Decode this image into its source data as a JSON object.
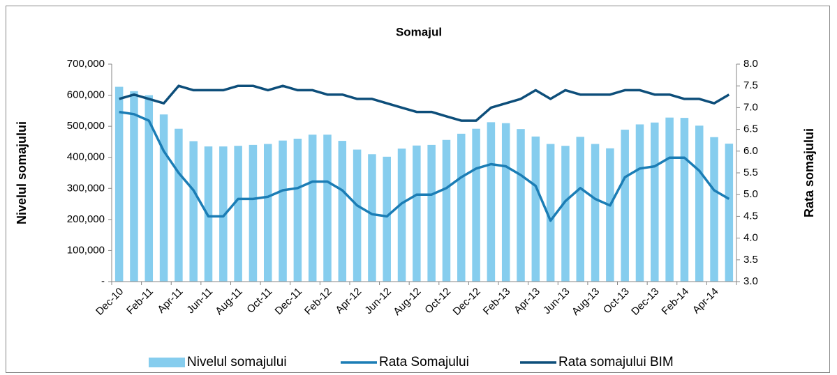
{
  "chart_data": {
    "type": "bar",
    "title": "Somajul",
    "y_label": "Nivelul somajului",
    "y2_label": "Rata somajului",
    "categories": [
      "Dec-10",
      null,
      "Feb-11",
      null,
      "Apr-11",
      null,
      "Jun-11",
      null,
      "Aug-11",
      null,
      "Oct-11",
      null,
      "Dec-11",
      null,
      "Feb-12",
      null,
      "Apr-12",
      null,
      "Jun-12",
      null,
      "Aug-12",
      null,
      "Oct-12",
      null,
      "Dec-12",
      null,
      "Feb-13",
      null,
      "Apr-13",
      null,
      "Jun-13",
      null,
      "Aug-13",
      null,
      "Oct-13",
      null,
      "Dec-13",
      null,
      "Feb-14",
      null,
      "Apr-14",
      null
    ],
    "series": [
      {
        "name": "Nivelul somajului",
        "type": "bar",
        "color": "#86cdee",
        "values": [
          627000,
          613000,
          600000,
          538000,
          492000,
          452000,
          435000,
          435000,
          437000,
          440000,
          443000,
          454000,
          460000,
          473000,
          473000,
          453000,
          425000,
          410000,
          402000,
          428000,
          438000,
          440000,
          456000,
          476000,
          492000,
          513000,
          510000,
          491000,
          467000,
          443000,
          437000,
          466000,
          443000,
          429000,
          489000,
          506000,
          512000,
          528000,
          527000,
          502000,
          465000,
          444000
        ]
      },
      {
        "name": "Rata Somajului",
        "type": "line",
        "axis": "y2",
        "color": "#1b7db5",
        "values": [
          6.9,
          6.85,
          6.7,
          6.0,
          5.5,
          5.1,
          4.5,
          4.5,
          4.9,
          4.9,
          4.95,
          5.1,
          5.15,
          5.3,
          5.3,
          5.1,
          4.75,
          4.55,
          4.5,
          4.8,
          5.0,
          5.0,
          5.15,
          5.4,
          5.6,
          5.7,
          5.65,
          5.45,
          5.2,
          4.4,
          4.85,
          5.15,
          4.9,
          4.75,
          5.4,
          5.6,
          5.65,
          5.85,
          5.85,
          5.55,
          5.1,
          4.9
        ]
      },
      {
        "name": "Rata somajului BIM",
        "type": "line",
        "axis": "y2",
        "color": "#0d4e7a",
        "values": [
          7.2,
          7.3,
          7.2,
          7.1,
          7.5,
          7.4,
          7.4,
          7.4,
          7.5,
          7.5,
          7.4,
          7.5,
          7.4,
          7.4,
          7.3,
          7.3,
          7.2,
          7.2,
          7.1,
          7.0,
          6.9,
          6.9,
          6.8,
          6.7,
          6.7,
          7.0,
          7.1,
          7.2,
          7.4,
          7.2,
          7.4,
          7.3,
          7.3,
          7.3,
          7.4,
          7.4,
          7.3,
          7.3,
          7.2,
          7.2,
          7.1,
          7.3
        ]
      }
    ],
    "ylim": [
      0,
      700000
    ],
    "yticks": [
      {
        "value": 0,
        "label": "-"
      },
      {
        "value": 100000,
        "label": "100,000"
      },
      {
        "value": 200000,
        "label": "200,000"
      },
      {
        "value": 300000,
        "label": "300,000"
      },
      {
        "value": 400000,
        "label": "400,000"
      },
      {
        "value": 500000,
        "label": "500,000"
      },
      {
        "value": 600000,
        "label": "600,000"
      },
      {
        "value": 700000,
        "label": "700,000"
      }
    ],
    "y2lim": [
      3,
      8
    ],
    "y2ticks": [
      {
        "value": 3,
        "label": "3.0"
      },
      3.5,
      {
        "value": 4,
        "label": "4.0"
      },
      4.5,
      {
        "value": 5,
        "label": "5.0"
      },
      5.5,
      {
        "value": 6,
        "label": "6.0"
      },
      6.5,
      {
        "value": 7,
        "label": "7.0"
      },
      7.5,
      {
        "value": 8,
        "label": "8.0"
      }
    ],
    "grid": false,
    "legend": "bottom"
  }
}
